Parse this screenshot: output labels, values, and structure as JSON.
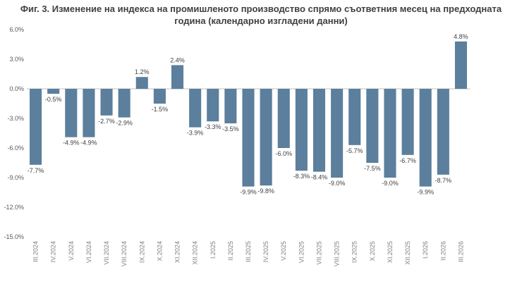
{
  "chart_data": {
    "type": "bar",
    "title_line1": "Фиг. 3. Изменение на индекса на промишленото производство спрямо съответния месец на предходната",
    "title_line2": "година (календарно изгладени данни)",
    "categories": [
      "III.2024",
      "IV.2024",
      "V.2024",
      "VI.2024",
      "VII.2024",
      "VIII.2024",
      "IX.2024",
      "X.2024",
      "XI.2024",
      "XII.2024",
      "I.2025",
      "II.2025",
      "III.2025",
      "IV.2025",
      "V.2025",
      "VI.2025",
      "VII.2025",
      "VIII.2025",
      "IX.2025",
      "X.2025",
      "XI.2025",
      "XII.2025",
      "I.2026",
      "II.2026",
      "III.2026"
    ],
    "values": [
      -7.7,
      -0.5,
      -4.9,
      -4.9,
      -2.7,
      -2.9,
      1.2,
      -1.5,
      2.4,
      -3.9,
      -3.3,
      -3.5,
      -9.9,
      -9.8,
      -6.0,
      -8.3,
      -8.4,
      -9.0,
      -5.7,
      -7.5,
      -9.0,
      -6.7,
      -9.9,
      -8.7,
      4.8
    ],
    "data_labels": [
      "-7.7%",
      "-0.5%",
      "-4.9%",
      "-4.9%",
      "-2.7%",
      "-2.9%",
      "1.2%",
      "-1.5%",
      "2.4%",
      "-3.9%",
      "-3.3%",
      "-3.5%",
      "-9.9%",
      "-9.8%",
      "-6.0%",
      "-8.3%",
      "-8.4%",
      "-9.0%",
      "-5.7%",
      "-7.5%",
      "-9.0%",
      "-6.7%",
      "-9.9%",
      "-8.7%",
      "4.8%"
    ],
    "yticks": [
      6.0,
      3.0,
      0.0,
      -3.0,
      -6.0,
      -9.0,
      -12.0,
      -15.0
    ],
    "ytick_labels": [
      "6.0%",
      "3.0%",
      "0.0%",
      "-3.0%",
      "-6.0%",
      "-9.0%",
      "-12.0%",
      "-15.0%"
    ],
    "ylim": [
      -15,
      6
    ],
    "xlabel": "",
    "ylabel": "",
    "grid": false,
    "bar_color": "#5b7f9c"
  }
}
